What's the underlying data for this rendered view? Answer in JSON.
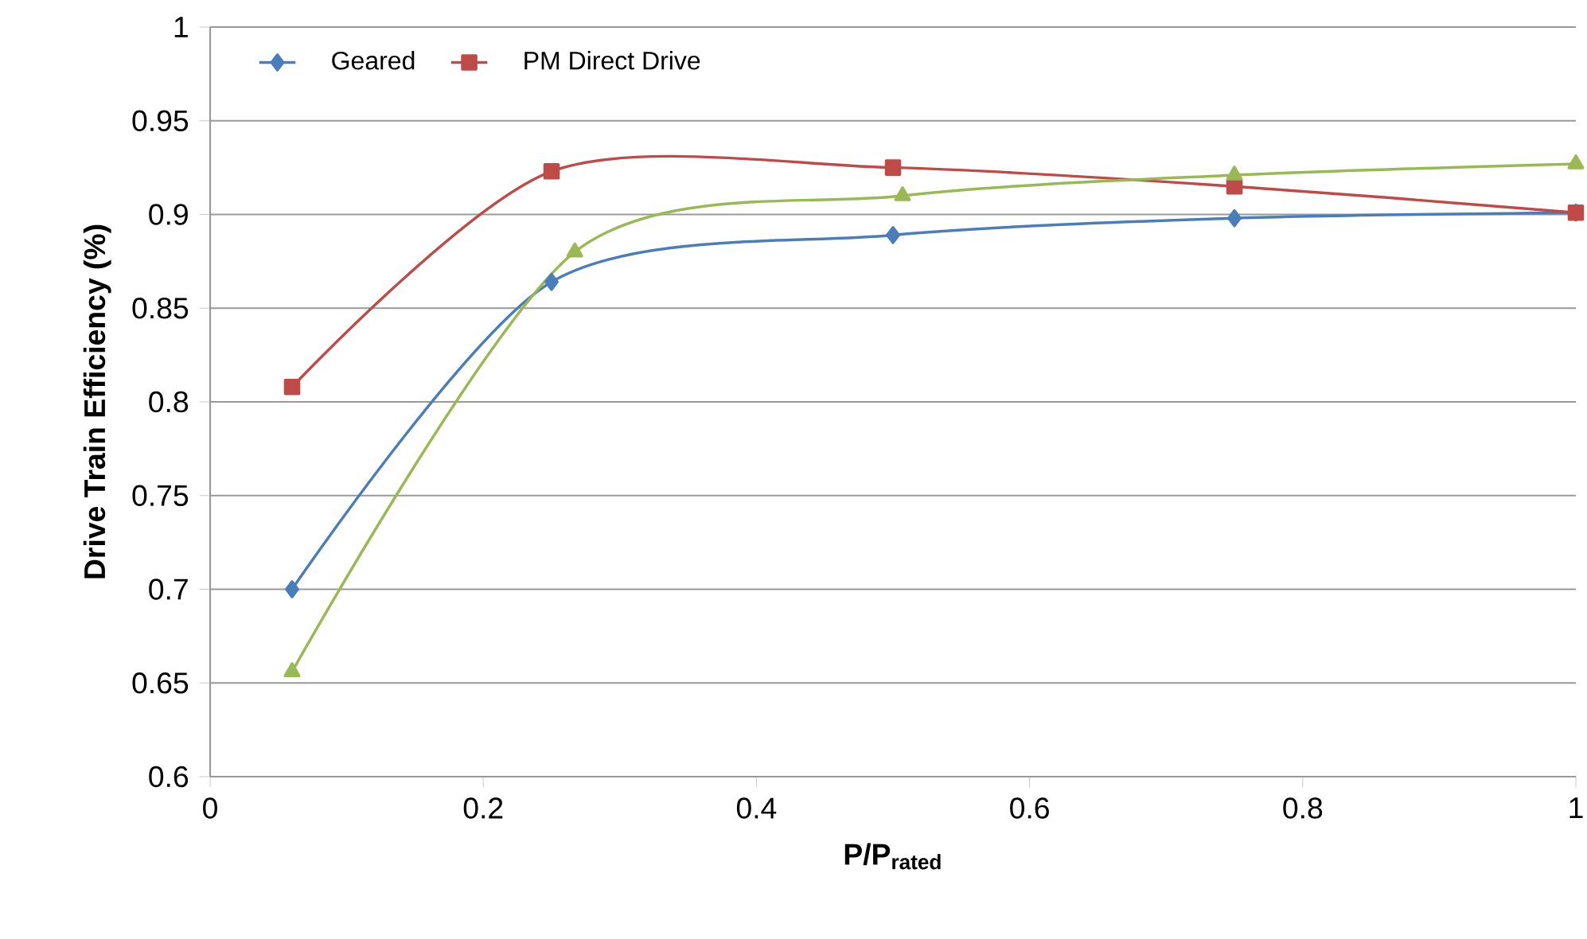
{
  "chart_data": {
    "type": "line",
    "xlabel": "P/P$_{rated}$",
    "ylabel": "Drive Train Efficiency (%)",
    "xlim": [
      0,
      1
    ],
    "ylim": [
      0.6,
      1
    ],
    "xticks": [
      0,
      0.2,
      0.4,
      0.6,
      0.8,
      1
    ],
    "yticks": [
      0.6,
      0.65,
      0.7,
      0.75,
      0.8,
      0.85,
      0.9,
      0.95,
      1
    ],
    "grid": "y",
    "legend": "top left",
    "series": [
      {
        "name": "Geared",
        "color": "#4a7ebb",
        "marker": "diamond",
        "x": [
          0.06,
          0.25,
          0.5,
          0.75,
          1
        ],
        "values": [
          0.7,
          0.864,
          0.889,
          0.898,
          0.901
        ]
      },
      {
        "name": "PM Direct Drive",
        "color": "#be4b48",
        "marker": "square",
        "x": [
          0.06,
          0.25,
          0.5,
          0.75,
          1
        ],
        "values": [
          0.808,
          0.923,
          0.925,
          0.915,
          0.901
        ]
      },
      {
        "color": "#98b954",
        "marker": "triangle",
        "x": [
          0.06,
          0.267,
          0.507,
          0.75,
          1
        ],
        "values": [
          0.656,
          0.88,
          0.91,
          0.921,
          0.927
        ]
      }
    ]
  }
}
